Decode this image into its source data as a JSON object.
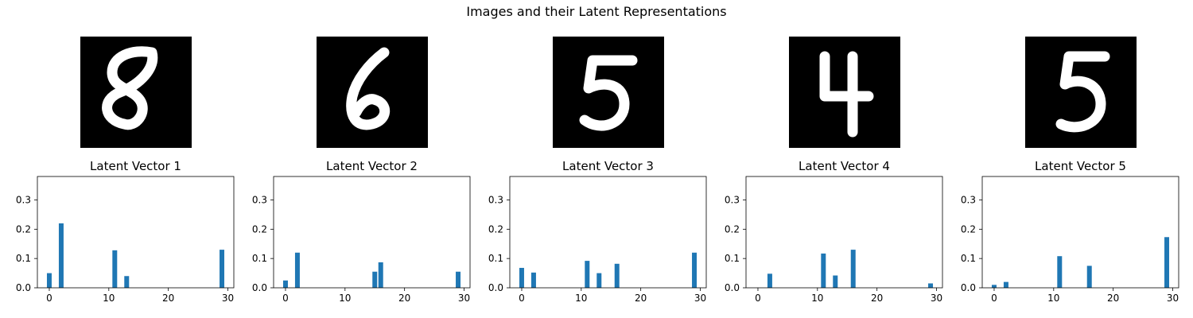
{
  "figure": {
    "suptitle": "Images and their Latent Representations"
  },
  "digits": [
    "8",
    "6",
    "5",
    "4",
    "5"
  ],
  "colors": {
    "bar": "#1f77b4",
    "axis": "#000000",
    "image_bg": "#000000",
    "stroke": "#ffffff"
  },
  "chart_data": [
    {
      "type": "bar",
      "title": "Latent Vector 1",
      "x": [
        0,
        2,
        11,
        13,
        29
      ],
      "values": [
        0.05,
        0.22,
        0.128,
        0.04,
        0.13
      ],
      "xlim": [
        -2,
        31
      ],
      "ylim": [
        0,
        0.38
      ],
      "xticks": [
        0,
        10,
        20,
        30
      ],
      "yticks": [
        0.0,
        0.1,
        0.2,
        0.3
      ]
    },
    {
      "type": "bar",
      "title": "Latent Vector 2",
      "x": [
        0,
        2,
        15,
        16,
        29
      ],
      "values": [
        0.025,
        0.12,
        0.055,
        0.087,
        0.055
      ],
      "xlim": [
        -2,
        31
      ],
      "ylim": [
        0,
        0.38
      ],
      "xticks": [
        0,
        10,
        20,
        30
      ],
      "yticks": [
        0.0,
        0.1,
        0.2,
        0.3
      ]
    },
    {
      "type": "bar",
      "title": "Latent Vector 3",
      "x": [
        0,
        2,
        11,
        13,
        16,
        29
      ],
      "values": [
        0.068,
        0.052,
        0.092,
        0.05,
        0.082,
        0.12
      ],
      "xlim": [
        -2,
        31
      ],
      "ylim": [
        0,
        0.38
      ],
      "xticks": [
        0,
        10,
        20,
        30
      ],
      "yticks": [
        0.0,
        0.1,
        0.2,
        0.3
      ]
    },
    {
      "type": "bar",
      "title": "Latent Vector 4",
      "x": [
        2,
        11,
        13,
        16,
        29
      ],
      "values": [
        0.048,
        0.117,
        0.042,
        0.13,
        0.015
      ],
      "xlim": [
        -2,
        31
      ],
      "ylim": [
        0,
        0.38
      ],
      "xticks": [
        0,
        10,
        20,
        30
      ],
      "yticks": [
        0.0,
        0.1,
        0.2,
        0.3
      ]
    },
    {
      "type": "bar",
      "title": "Latent Vector 5",
      "x": [
        0,
        2,
        11,
        16,
        29
      ],
      "values": [
        0.01,
        0.02,
        0.108,
        0.075,
        0.173
      ],
      "xlim": [
        -2,
        31
      ],
      "ylim": [
        0,
        0.38
      ],
      "xticks": [
        0,
        10,
        20,
        30
      ],
      "yticks": [
        0.0,
        0.1,
        0.2,
        0.3
      ]
    }
  ]
}
